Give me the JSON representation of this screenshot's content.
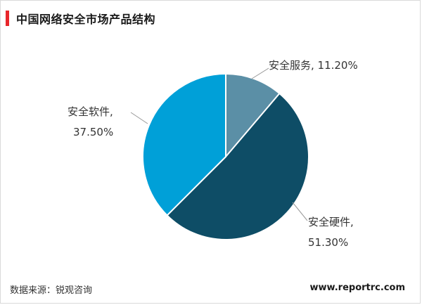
{
  "header": {
    "title": "中国网络安全市场产品结构"
  },
  "chart_data": {
    "type": "pie",
    "start_angle_deg": 0,
    "direction": "clockwise",
    "slices": [
      {
        "label": "安全服务",
        "value": 11.2,
        "display": "安全服务, 11.20%",
        "color": "#5b8fa6"
      },
      {
        "label": "安全硬件",
        "value": 51.3,
        "display_name": "安全硬件,",
        "display_value": "51.30%",
        "color": "#0e4d66"
      },
      {
        "label": "安全软件",
        "value": 37.5,
        "display_name": "安全软件,",
        "display_value": "37.50%",
        "color": "#00a0d8"
      }
    ]
  },
  "footer": {
    "source": "数据来源：锐观咨询",
    "url": "www.reportrc.com"
  }
}
